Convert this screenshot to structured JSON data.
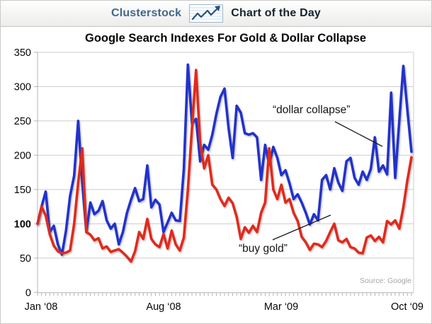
{
  "header": {
    "brand": "Clusterstock",
    "title": "Chart of the Day"
  },
  "icons": {
    "sparkline": "sparkline-trend-arrow"
  },
  "chart_data": {
    "type": "line",
    "title": "Google Search Indexes For Gold & Dollar Collapse",
    "source": "Source: Google",
    "legend_position": "annotations-inline",
    "grid": true,
    "x_axis": {
      "start": "Jan 2008",
      "end": "Oct 2009",
      "interval": "weekly",
      "tick_labels": [
        "Jan ‘08",
        "Aug ‘08",
        "Mar ‘09",
        "Oct ‘09"
      ]
    },
    "y_axis": {
      "min": 0,
      "max": 350,
      "tick_step": 50,
      "baseline": 100
    },
    "annotations": [
      {
        "text": "“dollar collapse”",
        "series": "dollar collapse"
      },
      {
        "text": "“buy gold”",
        "series": "buy gold"
      }
    ],
    "series": [
      {
        "name": "dollar collapse",
        "color": "#2133cb",
        "values": [
          100,
          125,
          147,
          88,
          97,
          70,
          55,
          90,
          140,
          170,
          250,
          160,
          88,
          131,
          114,
          119,
          133,
          105,
          93,
          100,
          70,
          88,
          116,
          135,
          152,
          133,
          136,
          185,
          124,
          135,
          128,
          88,
          102,
          116,
          105,
          104,
          180,
          332,
          246,
          253,
          191,
          215,
          208,
          230,
          260,
          285,
          297,
          240,
          196,
          272,
          262,
          232,
          230,
          232,
          226,
          164,
          215,
          186,
          212,
          196,
          171,
          178,
          159,
          136,
          143,
          131,
          116,
          99,
          114,
          105,
          164,
          171,
          150,
          181,
          160,
          148,
          191,
          196,
          167,
          157,
          176,
          164,
          180,
          226,
          176,
          185,
          172,
          291,
          167,
          250,
          330,
          265,
          205
        ]
      },
      {
        "name": "buy gold",
        "color": "#e02b1b",
        "values": [
          100,
          125,
          112,
          85,
          68,
          60,
          57,
          58,
          61,
          100,
          160,
          210,
          88,
          84,
          76,
          79,
          64,
          67,
          59,
          61,
          63,
          58,
          52,
          45,
          60,
          88,
          78,
          107,
          78,
          70,
          66,
          85,
          64,
          90,
          70,
          61,
          80,
          150,
          240,
          324,
          219,
          181,
          200,
          157,
          150,
          136,
          126,
          138,
          130,
          110,
          78,
          95,
          87,
          97,
          88,
          116,
          131,
          210,
          150,
          136,
          157,
          131,
          136,
          116,
          104,
          81,
          73,
          62,
          71,
          70,
          66,
          75,
          88,
          100,
          76,
          73,
          78,
          66,
          64,
          58,
          57,
          80,
          83,
          75,
          81,
          73,
          104,
          99,
          105,
          93,
          124,
          164,
          197
        ]
      }
    ]
  }
}
